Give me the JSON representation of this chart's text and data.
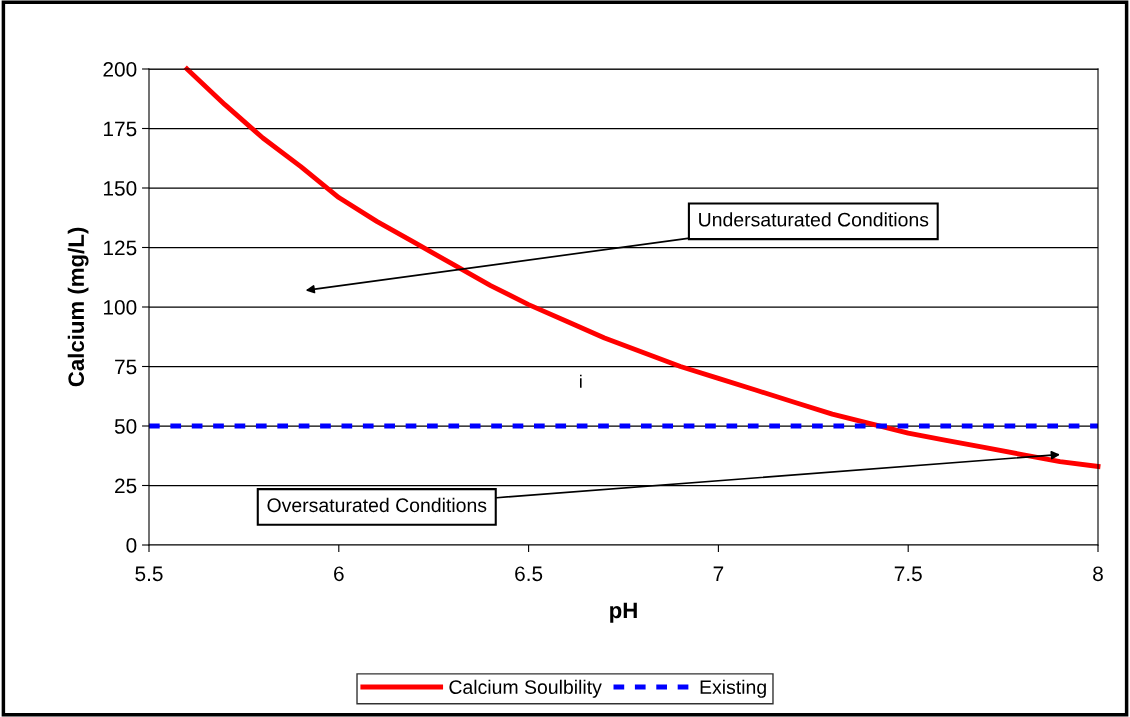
{
  "chart_data": {
    "type": "line",
    "xlabel": "pH",
    "ylabel": "Calcium (mg/L)",
    "xlim": [
      5.5,
      8
    ],
    "xticks": [
      5.5,
      6,
      6.5,
      7,
      7.5,
      8
    ],
    "ylim": [
      0,
      200
    ],
    "yticks": [
      0,
      25,
      50,
      75,
      100,
      125,
      150,
      175,
      200
    ],
    "grid": "y",
    "legend": "bottom",
    "marker": "none",
    "series": [
      {
        "name": "Calcium Soulbility",
        "color": "#ff0000",
        "line_style": "solid",
        "x": [
          5.6,
          5.7,
          5.8,
          5.9,
          6.0,
          6.1,
          6.2,
          6.3,
          6.4,
          6.5,
          6.6,
          6.7,
          6.8,
          6.9,
          7.0,
          7.1,
          7.2,
          7.3,
          7.4,
          7.5,
          7.6,
          7.7,
          7.8,
          7.9,
          8.0
        ],
        "values": [
          200,
          185,
          171,
          159,
          146,
          136,
          127,
          118,
          109,
          101,
          94,
          87,
          81,
          75,
          70,
          65,
          60,
          55,
          51,
          47,
          44,
          41,
          38,
          35,
          33
        ]
      },
      {
        "name": "Existing",
        "color": "#0000ff",
        "line_style": "dashed",
        "x": [
          5.5,
          8.0
        ],
        "values": [
          50,
          50
        ]
      }
    ],
    "annotations": [
      "Undersaturated Conditions",
      {
        "text": "Oversaturated Conditions",
        "x": 7.9,
        "y": 38
      },
      "i"
    ]
  }
}
